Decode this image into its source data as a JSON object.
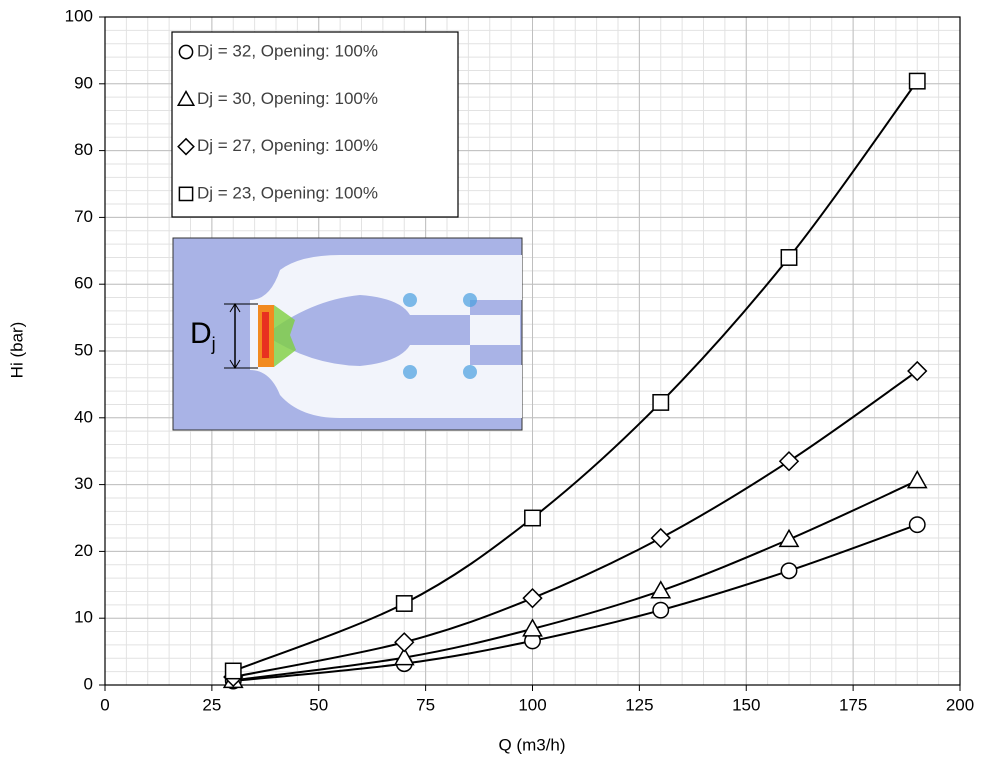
{
  "chart_data": {
    "type": "line",
    "xlabel": "Q (m3/h)",
    "ylabel": "Hi (bar)",
    "x": [
      30,
      70,
      100,
      130,
      160,
      190
    ],
    "series": [
      {
        "name": "Dj = 32, Opening: 100%",
        "marker": "circle",
        "color": "#000000",
        "values": [
          0.6,
          3.2,
          6.6,
          11.2,
          17.1,
          24.0
        ]
      },
      {
        "name": "Dj = 30, Opening: 100%",
        "marker": "triangle",
        "color": "#000000",
        "values": [
          0.7,
          4.1,
          8.4,
          14.1,
          21.8,
          30.6
        ]
      },
      {
        "name": "Dj = 27, Opening: 100%",
        "marker": "diamond",
        "color": "#000000",
        "values": [
          1.2,
          6.4,
          13.0,
          22.0,
          33.5,
          47.0
        ]
      },
      {
        "name": "Dj = 23, Opening: 100%",
        "marker": "square",
        "color": "#000000",
        "values": [
          2.1,
          12.2,
          25.0,
          42.3,
          64.0,
          90.4
        ]
      }
    ],
    "xlim": [
      0,
      200
    ],
    "xticks": [
      0,
      25,
      50,
      75,
      100,
      125,
      150,
      175,
      200
    ],
    "ylim": [
      0,
      100
    ],
    "yticks": [
      0,
      10,
      20,
      30,
      40,
      50,
      60,
      70,
      80,
      90,
      100
    ],
    "grid": true,
    "minor_grid": {
      "x": 5,
      "y": 2
    },
    "legend": "upper left",
    "inset_label": {
      "text": "D",
      "subscript": "j"
    }
  }
}
